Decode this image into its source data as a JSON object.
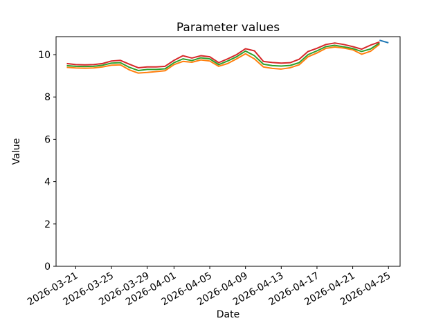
{
  "chart_data": {
    "type": "line",
    "title": "Parameter values",
    "xlabel": "Date",
    "ylabel": "Value",
    "legend_visible": false,
    "grid": false,
    "ylim": [
      0,
      10.85
    ],
    "yticks": [
      0,
      2,
      4,
      6,
      8,
      10
    ],
    "x": [
      "2026-03-20",
      "2026-03-21",
      "2026-03-22",
      "2026-03-23",
      "2026-03-24",
      "2026-03-25",
      "2026-03-26",
      "2026-03-27",
      "2026-03-28",
      "2026-03-29",
      "2026-03-30",
      "2026-03-31",
      "2026-04-01",
      "2026-04-02",
      "2026-04-03",
      "2026-04-04",
      "2026-04-05",
      "2026-04-06",
      "2026-04-07",
      "2026-04-08",
      "2026-04-09",
      "2026-04-10",
      "2026-04-11",
      "2026-04-12",
      "2026-04-13",
      "2026-04-14",
      "2026-04-15",
      "2026-04-16",
      "2026-04-17",
      "2026-04-18",
      "2026-04-19",
      "2026-04-20",
      "2026-04-21",
      "2026-04-22",
      "2026-04-23",
      "2026-04-24",
      "2026-04-25"
    ],
    "xticks": [
      {
        "index": 1,
        "label": "2026-03-21"
      },
      {
        "index": 5,
        "label": "2026-03-25"
      },
      {
        "index": 9,
        "label": "2026-03-29"
      },
      {
        "index": 12,
        "label": "2026-04-01"
      },
      {
        "index": 16,
        "label": "2026-04-05"
      },
      {
        "index": 20,
        "label": "2026-04-09"
      },
      {
        "index": 24,
        "label": "2026-04-13"
      },
      {
        "index": 28,
        "label": "2026-04-17"
      },
      {
        "index": 32,
        "label": "2026-04-21"
      },
      {
        "index": 36,
        "label": "2026-04-25"
      }
    ],
    "xtick_rotation_deg": 30,
    "series": [
      {
        "name": "blue-series",
        "color": "#1f77b4",
        "values": [
          null,
          null,
          null,
          null,
          null,
          null,
          null,
          null,
          null,
          null,
          null,
          null,
          null,
          null,
          null,
          null,
          null,
          null,
          null,
          null,
          null,
          null,
          null,
          null,
          null,
          null,
          null,
          null,
          null,
          null,
          null,
          null,
          null,
          null,
          null,
          10.68,
          10.56
        ]
      },
      {
        "name": "orange-series",
        "color": "#ff7f0e",
        "values": [
          9.4,
          9.37,
          9.36,
          9.37,
          9.42,
          9.5,
          9.52,
          9.28,
          9.13,
          9.16,
          9.2,
          9.24,
          9.53,
          9.68,
          9.64,
          9.75,
          9.7,
          9.45,
          9.58,
          9.8,
          10.04,
          9.8,
          9.42,
          9.35,
          9.32,
          9.38,
          9.52,
          9.9,
          10.08,
          10.3,
          10.36,
          10.31,
          10.23,
          10.02,
          10.16,
          10.49,
          null
        ]
      },
      {
        "name": "green-series",
        "color": "#2ca02c",
        "values": [
          9.48,
          9.45,
          9.44,
          9.45,
          9.5,
          9.6,
          9.62,
          9.4,
          9.25,
          9.3,
          9.3,
          9.33,
          9.62,
          9.8,
          9.72,
          9.85,
          9.8,
          9.53,
          9.7,
          9.9,
          10.17,
          9.95,
          9.55,
          9.48,
          9.46,
          9.49,
          9.62,
          10.0,
          10.18,
          10.38,
          10.44,
          10.37,
          10.29,
          10.15,
          10.27,
          10.55,
          null
        ]
      },
      {
        "name": "red-series",
        "color": "#d62728",
        "values": [
          9.58,
          9.53,
          9.52,
          9.53,
          9.58,
          9.7,
          9.73,
          9.55,
          9.38,
          9.42,
          9.42,
          9.45,
          9.73,
          9.95,
          9.84,
          9.95,
          9.9,
          9.62,
          9.8,
          10.0,
          10.28,
          10.18,
          9.68,
          9.63,
          9.6,
          9.62,
          9.78,
          10.15,
          10.3,
          10.48,
          10.55,
          10.48,
          10.38,
          10.26,
          10.45,
          10.6,
          null
        ]
      }
    ],
    "colors": {
      "spine": "#000000",
      "tick_label": "#000000",
      "background": "#ffffff"
    }
  }
}
